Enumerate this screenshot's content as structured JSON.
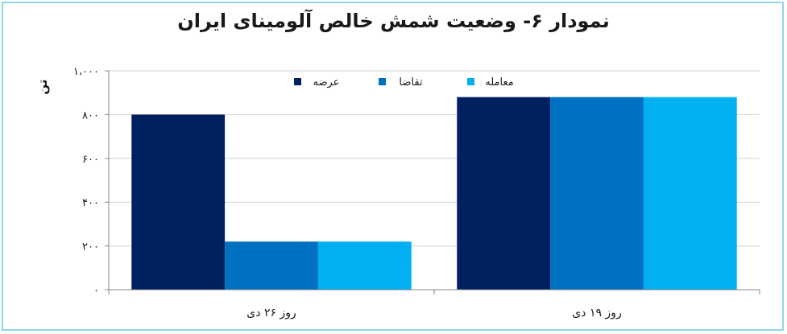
{
  "chart_data": {
    "type": "bar",
    "title": "نمودار ۶- وضعیت شمش خالص آلومینای ایران",
    "ylabel": "تن",
    "xlabel": "",
    "categories": [
      "روز ۲۶ دی",
      "روز ۱۹ دی"
    ],
    "series": [
      {
        "name": "عرضه",
        "color": "#002060",
        "values": [
          800,
          880
        ]
      },
      {
        "name": "تقاضا",
        "color": "#0070c0",
        "values": [
          220,
          880
        ]
      },
      {
        "name": "معامله",
        "color": "#00b0f0",
        "values": [
          220,
          880
        ]
      }
    ],
    "ylim": [
      0,
      1000
    ],
    "yticks": [
      0,
      200,
      400,
      600,
      800,
      1000
    ],
    "ytick_labels": [
      "۰",
      "۲۰۰",
      "۴۰۰",
      "۶۰۰",
      "۸۰۰",
      "۱،۰۰۰"
    ],
    "grid": true,
    "legend": "top"
  }
}
